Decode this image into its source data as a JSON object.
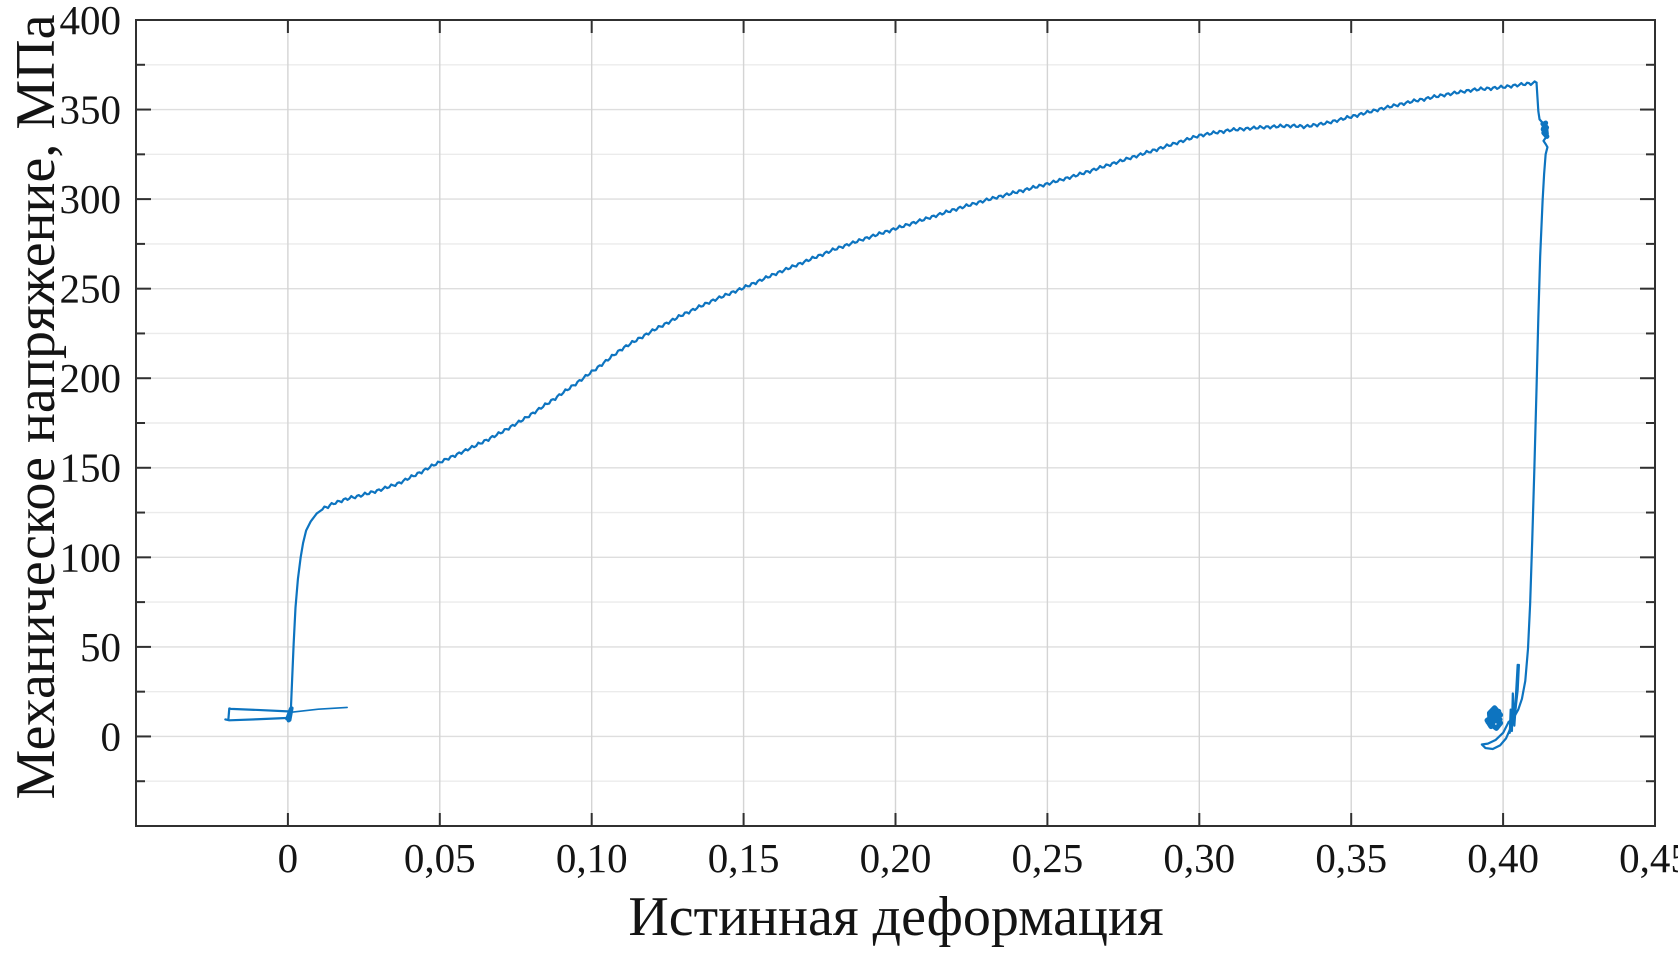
{
  "figure": {
    "background": "#ffffff"
  },
  "chart_data": {
    "type": "line",
    "title": "",
    "xlabel": "Истинная деформация",
    "ylabel": "Механическое напряжение, МПа",
    "xlim": [
      -0.05,
      0.45
    ],
    "ylim": [
      -50,
      400
    ],
    "x_major_ticks": [
      {
        "v": 0.0,
        "label": "0"
      },
      {
        "v": 0.05,
        "label": "0,05"
      },
      {
        "v": 0.1,
        "label": "0,10"
      },
      {
        "v": 0.15,
        "label": "0,15"
      },
      {
        "v": 0.2,
        "label": "0,20"
      },
      {
        "v": 0.25,
        "label": "0,25"
      },
      {
        "v": 0.3,
        "label": "0,30"
      },
      {
        "v": 0.35,
        "label": "0,35"
      },
      {
        "v": 0.4,
        "label": "0,40"
      },
      {
        "v": 0.45,
        "label": "0,45"
      }
    ],
    "y_major_ticks": [
      {
        "v": 0,
        "label": "0"
      },
      {
        "v": 50,
        "label": "50"
      },
      {
        "v": 100,
        "label": "100"
      },
      {
        "v": 150,
        "label": "150"
      },
      {
        "v": 200,
        "label": "200"
      },
      {
        "v": 250,
        "label": "250"
      },
      {
        "v": 300,
        "label": "300"
      },
      {
        "v": 350,
        "label": "350"
      },
      {
        "v": 400,
        "label": "400"
      }
    ],
    "y_minor_step": 25,
    "grid": {
      "show_x_major": true,
      "show_y_major": true,
      "show_y_minor": true,
      "show_x_minor": false
    },
    "legend": null,
    "colors": {
      "line": "#0d74c0",
      "grid_major": "#dedede",
      "grid_minor": "#ebebeb",
      "grid_vertical": "#d4d4d4",
      "axis": "#303030",
      "text": "#141414"
    },
    "series": [
      {
        "name": "initial-tail-right",
        "stroke_width": 1.6,
        "points": [
          [
            0.0195,
            16.2
          ],
          [
            0.01,
            15.2
          ],
          [
            0.0016,
            13.6
          ]
        ]
      },
      {
        "name": "initial-loop",
        "stroke_width": 2.2,
        "points": [
          [
            0.0,
            14.0
          ],
          [
            -0.01,
            14.8
          ],
          [
            -0.0188,
            15.4
          ],
          [
            -0.0193,
            15.6
          ],
          [
            -0.0196,
            9.2
          ],
          [
            -0.0206,
            9.5
          ],
          [
            -0.0193,
            9.0
          ],
          [
            -0.01,
            9.6
          ],
          [
            -0.0005,
            10.3
          ]
        ]
      },
      {
        "name": "zero-knot",
        "stroke_width": 3.5,
        "points": [
          [
            0.0002,
            8.8
          ],
          [
            0.0009,
            15.5
          ],
          [
            -0.0003,
            9.8
          ],
          [
            0.0011,
            14.2
          ],
          [
            0.0001,
            10.5
          ],
          [
            0.0013,
            15.8
          ],
          [
            0.0006,
            9.2
          ]
        ]
      },
      {
        "name": "loading-curve",
        "stroke_width": 2.2,
        "serration": {
          "amplitude": 1.0,
          "period": 0.0022,
          "from": 0.012,
          "to": 0.4105
        },
        "points": [
          [
            0.001,
            16
          ],
          [
            0.0014,
            32
          ],
          [
            0.0019,
            52
          ],
          [
            0.0025,
            72
          ],
          [
            0.0033,
            88
          ],
          [
            0.0042,
            100
          ],
          [
            0.005,
            108
          ],
          [
            0.006,
            115
          ],
          [
            0.0075,
            120
          ],
          [
            0.0095,
            124.5
          ],
          [
            0.012,
            127.5
          ],
          [
            0.015,
            130
          ],
          [
            0.019,
            132.5
          ],
          [
            0.024,
            134.5
          ],
          [
            0.03,
            137.5
          ],
          [
            0.036,
            141
          ],
          [
            0.042,
            146
          ],
          [
            0.048,
            151.5
          ],
          [
            0.055,
            157
          ],
          [
            0.062,
            162.5
          ],
          [
            0.07,
            169.5
          ],
          [
            0.078,
            177.5
          ],
          [
            0.086,
            186.5
          ],
          [
            0.094,
            196
          ],
          [
            0.102,
            206
          ],
          [
            0.11,
            216.5
          ],
          [
            0.12,
            226.5
          ],
          [
            0.13,
            235.5
          ],
          [
            0.14,
            243.5
          ],
          [
            0.15,
            250.5
          ],
          [
            0.16,
            258
          ],
          [
            0.17,
            265
          ],
          [
            0.18,
            272
          ],
          [
            0.19,
            278
          ],
          [
            0.2,
            283.5
          ],
          [
            0.21,
            289
          ],
          [
            0.22,
            294.5
          ],
          [
            0.23,
            299.5
          ],
          [
            0.24,
            304
          ],
          [
            0.25,
            308.5
          ],
          [
            0.26,
            313.5
          ],
          [
            0.27,
            319
          ],
          [
            0.28,
            324.5
          ],
          [
            0.29,
            330
          ],
          [
            0.3,
            335.5
          ],
          [
            0.31,
            338.5
          ],
          [
            0.32,
            340
          ],
          [
            0.33,
            341
          ],
          [
            0.335,
            340.5
          ],
          [
            0.342,
            342.5
          ],
          [
            0.35,
            346
          ],
          [
            0.36,
            350.5
          ],
          [
            0.37,
            354.5
          ],
          [
            0.38,
            358
          ],
          [
            0.39,
            361
          ],
          [
            0.4,
            362.5
          ],
          [
            0.406,
            364
          ],
          [
            0.411,
            365
          ]
        ]
      },
      {
        "name": "fracture-drop",
        "stroke_width": 2.2,
        "points": [
          [
            0.411,
            365
          ],
          [
            0.4113,
            357
          ],
          [
            0.4116,
            349
          ],
          [
            0.412,
            344.5
          ],
          [
            0.4128,
            343
          ],
          [
            0.4138,
            341.5
          ],
          [
            0.4145,
            339.5
          ],
          [
            0.4147,
            336.5
          ],
          [
            0.4139,
            334
          ],
          [
            0.4133,
            332.5
          ],
          [
            0.4141,
            330.5
          ],
          [
            0.4146,
            329
          ],
          [
            0.414,
            325
          ],
          [
            0.4135,
            314
          ],
          [
            0.413,
            299
          ],
          [
            0.4122,
            268
          ],
          [
            0.4116,
            234
          ],
          [
            0.411,
            194
          ],
          [
            0.4103,
            150
          ],
          [
            0.4096,
            110
          ],
          [
            0.4089,
            74
          ],
          [
            0.4082,
            49
          ],
          [
            0.4073,
            31
          ],
          [
            0.4062,
            21
          ],
          [
            0.405,
            15
          ],
          [
            0.4035,
            10.5
          ],
          [
            0.4018,
            8
          ]
        ]
      },
      {
        "name": "fracture-knot",
        "stroke_width": 5,
        "points": [
          [
            0.4131,
            342
          ],
          [
            0.4143,
            340
          ],
          [
            0.4134,
            337
          ],
          [
            0.4144,
            335
          ],
          [
            0.4132,
            339
          ],
          [
            0.414,
            342.5
          ]
        ]
      },
      {
        "name": "post-fracture-zigzag",
        "stroke_width": 2.2,
        "points": [
          [
            0.4048,
            40
          ],
          [
            0.404,
            16
          ],
          [
            0.4046,
            28
          ],
          [
            0.4037,
            6
          ],
          [
            0.4032,
            24
          ],
          [
            0.4029,
            3
          ],
          [
            0.4025,
            15
          ],
          [
            0.4022,
            2
          ]
        ]
      },
      {
        "name": "post-fracture-knot",
        "stroke_width": 5,
        "points": [
          [
            0.3992,
            12
          ],
          [
            0.3972,
            16
          ],
          [
            0.3955,
            13
          ],
          [
            0.3958,
            7
          ],
          [
            0.3978,
            4.5
          ],
          [
            0.3992,
            7.5
          ],
          [
            0.3965,
            10
          ],
          [
            0.395,
            8
          ],
          [
            0.3968,
            15
          ],
          [
            0.3986,
            14
          ],
          [
            0.396,
            5.5
          ],
          [
            0.3947,
            9
          ],
          [
            0.3976,
            12
          ],
          [
            0.399,
            9.5
          ]
        ]
      },
      {
        "name": "post-fracture-loop",
        "stroke_width": 2.2,
        "points": [
          [
            0.4018,
            8
          ],
          [
            0.4,
            2
          ],
          [
            0.3975,
            -2
          ],
          [
            0.395,
            -4
          ],
          [
            0.393,
            -4.5
          ],
          [
            0.3942,
            -6.5
          ],
          [
            0.3966,
            -7
          ],
          [
            0.399,
            -5
          ],
          [
            0.401,
            -1
          ],
          [
            0.4028,
            6
          ],
          [
            0.404,
            14
          ],
          [
            0.4048,
            26
          ],
          [
            0.4052,
            40
          ]
        ]
      }
    ]
  }
}
